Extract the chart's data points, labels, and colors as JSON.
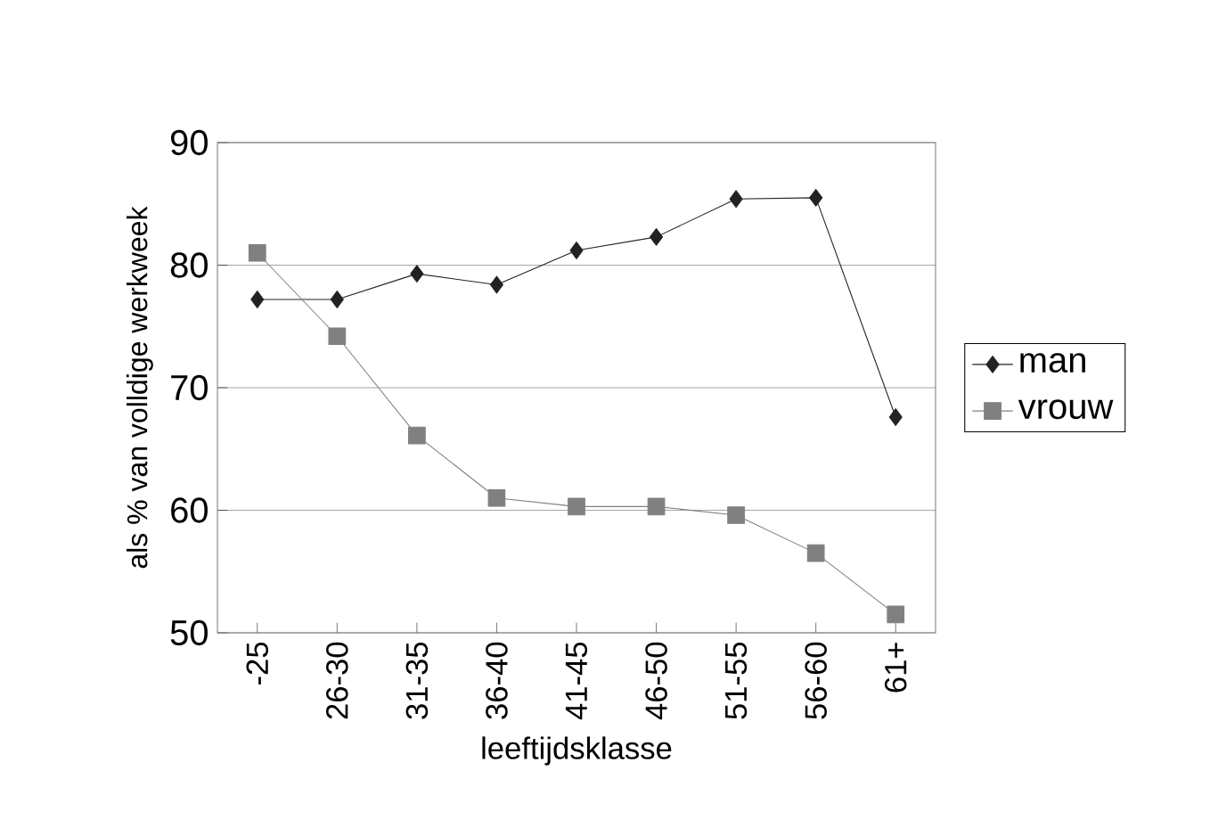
{
  "chart_data": {
    "type": "line",
    "xlabel": "leeftijdsklasse",
    "ylabel": "als % van volldige werkweek",
    "categories": [
      "-25",
      "26-30",
      "31-35",
      "36-40",
      "41-45",
      "46-50",
      "51-55",
      "56-60",
      "61+"
    ],
    "series": [
      {
        "name": "man",
        "color": "#222222",
        "marker": "diamond",
        "values": [
          77.2,
          77.2,
          79.3,
          78.4,
          81.2,
          82.3,
          85.4,
          85.5,
          67.6
        ]
      },
      {
        "name": "vrouw",
        "color": "#808080",
        "marker": "square",
        "values": [
          81.0,
          74.2,
          66.1,
          61.0,
          60.3,
          60.3,
          59.6,
          56.5,
          51.5
        ]
      }
    ],
    "ylim": [
      50,
      90
    ],
    "yticks": [
      50,
      60,
      70,
      80,
      90
    ],
    "grid": "y",
    "legend": "right",
    "line_style": "solid"
  }
}
